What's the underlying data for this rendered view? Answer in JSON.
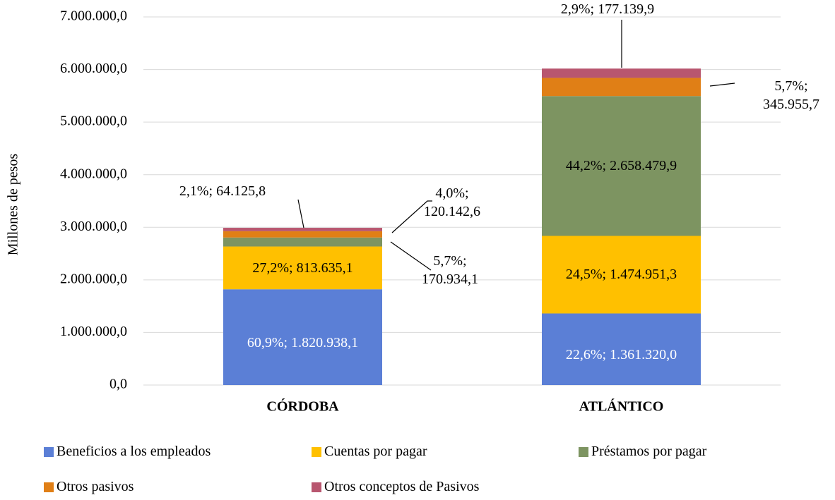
{
  "chart_data": {
    "type": "stacked_bar",
    "y_axis_label": "Millones  de pesos",
    "categories": [
      "CÓRDOBA",
      "ATLÁNTICO"
    ],
    "ylim": [
      0,
      7000000
    ],
    "yticks": [
      {
        "value": 0,
        "label": "0,0"
      },
      {
        "value": 1000000,
        "label": "1.000.000,0"
      },
      {
        "value": 2000000,
        "label": "2.000.000,0"
      },
      {
        "value": 3000000,
        "label": "3.000.000,0"
      },
      {
        "value": 4000000,
        "label": "4.000.000,0"
      },
      {
        "value": 5000000,
        "label": "5.000.000,0"
      },
      {
        "value": 6000000,
        "label": "6.000.000,0"
      },
      {
        "value": 7000000,
        "label": "7.000.000,0"
      }
    ],
    "grid": true,
    "legend": "bottom",
    "series": [
      {
        "name": "Beneficios a los empleados",
        "color": "#5b7fd6",
        "values": [
          1820938.1,
          1361320.0
        ],
        "value_labels": [
          "60,9%; 1.820.938,1",
          "22,6%; 1.361.320,0"
        ]
      },
      {
        "name": "Cuentas por pagar",
        "color": "#ffc000",
        "values": [
          813635.1,
          1474951.3
        ],
        "value_labels": [
          "27,2%; 813.635,1",
          "24,5%; 1.474.951,3"
        ]
      },
      {
        "name": "Préstamos por pagar",
        "color": "#7d9461",
        "values": [
          170934.1,
          2658479.9
        ],
        "value_labels": [
          "5,7%; 170.934,1",
          "44,2%; 2.658.479,9"
        ]
      },
      {
        "name": "Otros pasivos",
        "color": "#e07f16",
        "values": [
          120142.6,
          345955.7
        ],
        "value_labels": [
          "4,0%; 120.142,6",
          "5,7%; 345.955,7"
        ]
      },
      {
        "name": "Otros conceptos de Pasivos",
        "color": "#b8566f",
        "values": [
          64125.8,
          177139.9
        ],
        "value_labels": [
          "2,1%; 64.125,8",
          "2,9%; 177.139,9"
        ]
      }
    ]
  }
}
